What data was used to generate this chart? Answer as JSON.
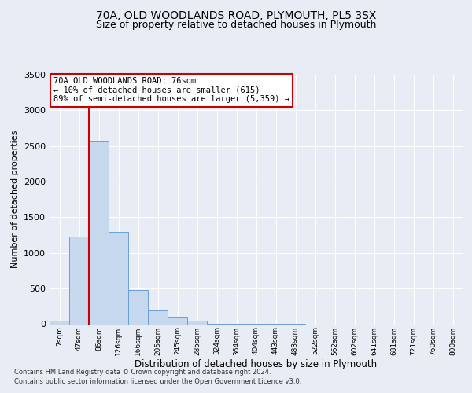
{
  "title1": "70A, OLD WOODLANDS ROAD, PLYMOUTH, PL5 3SX",
  "title2": "Size of property relative to detached houses in Plymouth",
  "xlabel": "Distribution of detached houses by size in Plymouth",
  "ylabel": "Number of detached properties",
  "bin_labels": [
    "7sqm",
    "47sqm",
    "86sqm",
    "126sqm",
    "166sqm",
    "205sqm",
    "245sqm",
    "285sqm",
    "324sqm",
    "364sqm",
    "404sqm",
    "443sqm",
    "483sqm",
    "522sqm",
    "562sqm",
    "602sqm",
    "641sqm",
    "681sqm",
    "721sqm",
    "760sqm",
    "800sqm"
  ],
  "bar_heights": [
    50,
    1225,
    2560,
    1290,
    480,
    190,
    100,
    55,
    5,
    5,
    2,
    2,
    2,
    0,
    0,
    0,
    0,
    0,
    0,
    0,
    0
  ],
  "bar_color": "#c5d8ee",
  "bar_edge_color": "#6a9fd8",
  "bar_width": 1.0,
  "ylim": [
    0,
    3500
  ],
  "yticks": [
    0,
    500,
    1000,
    1500,
    2000,
    2500,
    3000,
    3500
  ],
  "vline_color": "#cc0000",
  "annotation_text": "70A OLD WOODLANDS ROAD: 76sqm\n← 10% of detached houses are smaller (615)\n89% of semi-detached houses are larger (5,359) →",
  "annotation_box_color": "#ffffff",
  "annotation_box_edge": "#cc0000",
  "bg_color": "#e8edf5",
  "plot_bg_color": "#e8edf5",
  "footer1": "Contains HM Land Registry data © Crown copyright and database right 2024.",
  "footer2": "Contains public sector information licensed under the Open Government Licence v3.0.",
  "grid_color": "#ffffff",
  "title1_fontsize": 10,
  "title2_fontsize": 9,
  "xlabel_fontsize": 8.5,
  "ylabel_fontsize": 8
}
